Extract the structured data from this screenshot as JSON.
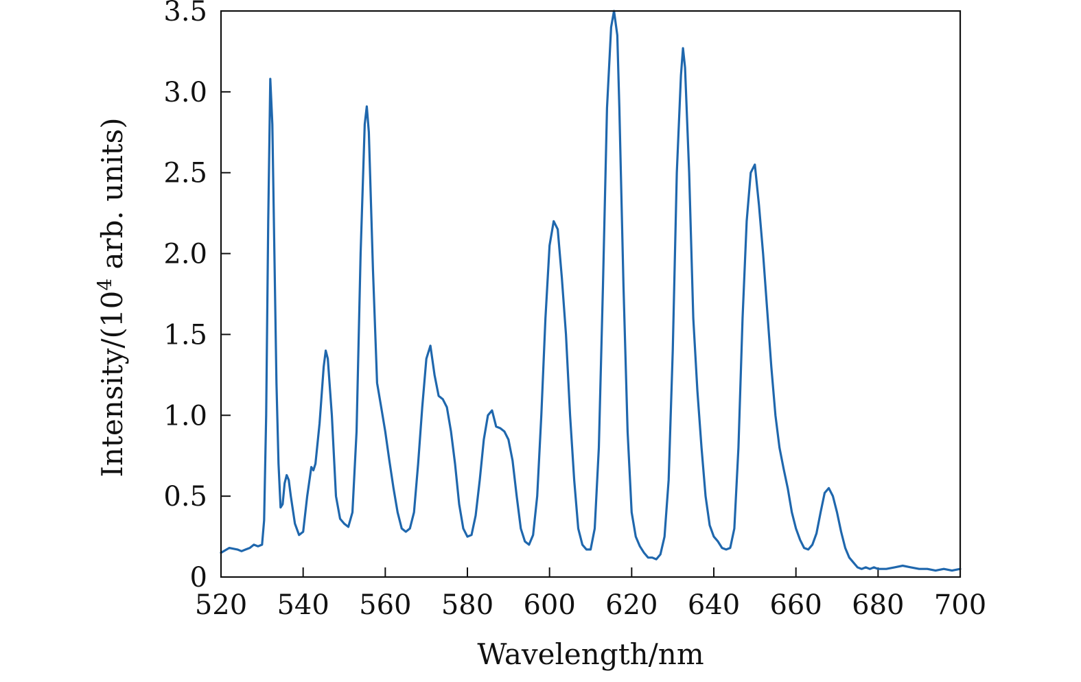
{
  "chart_data": {
    "type": "line",
    "title": "",
    "xlabel": "Wavelength/nm",
    "ylabel": "Intensity/(10⁴ arb. units)",
    "ylabel_parts": {
      "prefix": "Intensity/(10",
      "superscript": "4",
      "suffix": " arb. units)"
    },
    "xlim": [
      520,
      700
    ],
    "ylim": [
      0,
      3.5
    ],
    "x_ticks": [
      520,
      540,
      560,
      580,
      600,
      620,
      640,
      660,
      680,
      700
    ],
    "x_tick_labels": [
      "520",
      "540",
      "560",
      "580",
      "600",
      "620",
      "640",
      "660",
      "680",
      "700"
    ],
    "y_ticks": [
      0,
      0.5,
      1.0,
      1.5,
      2.0,
      2.5,
      3.0,
      3.5
    ],
    "y_tick_labels": [
      "0",
      "0.5",
      "1.0",
      "1.5",
      "2.0",
      "2.5",
      "3.0",
      "3.5"
    ],
    "grid": false,
    "legend": "none",
    "series": [
      {
        "color": "#1f67ad",
        "points": [
          [
            520,
            0.15
          ],
          [
            522,
            0.18
          ],
          [
            524,
            0.17
          ],
          [
            525,
            0.16
          ],
          [
            526,
            0.17
          ],
          [
            527,
            0.18
          ],
          [
            528,
            0.2
          ],
          [
            529,
            0.19
          ],
          [
            530,
            0.2
          ],
          [
            530.5,
            0.35
          ],
          [
            531,
            1.0
          ],
          [
            531.5,
            2.2
          ],
          [
            532,
            3.08
          ],
          [
            532.5,
            2.8
          ],
          [
            533,
            2.0
          ],
          [
            533.5,
            1.2
          ],
          [
            534,
            0.7
          ],
          [
            534.5,
            0.43
          ],
          [
            535,
            0.45
          ],
          [
            535.5,
            0.58
          ],
          [
            536,
            0.63
          ],
          [
            536.5,
            0.6
          ],
          [
            537,
            0.5
          ],
          [
            538,
            0.33
          ],
          [
            539,
            0.26
          ],
          [
            540,
            0.28
          ],
          [
            541,
            0.5
          ],
          [
            542,
            0.68
          ],
          [
            542.5,
            0.66
          ],
          [
            543,
            0.7
          ],
          [
            544,
            0.95
          ],
          [
            545,
            1.3
          ],
          [
            545.5,
            1.4
          ],
          [
            546,
            1.35
          ],
          [
            547,
            1.0
          ],
          [
            548,
            0.5
          ],
          [
            549,
            0.36
          ],
          [
            550,
            0.33
          ],
          [
            551,
            0.31
          ],
          [
            552,
            0.4
          ],
          [
            553,
            0.9
          ],
          [
            554,
            2.0
          ],
          [
            555,
            2.8
          ],
          [
            555.5,
            2.91
          ],
          [
            556,
            2.75
          ],
          [
            557,
            1.9
          ],
          [
            558,
            1.2
          ],
          [
            559,
            1.05
          ],
          [
            560,
            0.9
          ],
          [
            561,
            0.72
          ],
          [
            562,
            0.55
          ],
          [
            563,
            0.4
          ],
          [
            564,
            0.3
          ],
          [
            565,
            0.28
          ],
          [
            566,
            0.3
          ],
          [
            567,
            0.4
          ],
          [
            568,
            0.7
          ],
          [
            569,
            1.05
          ],
          [
            570,
            1.35
          ],
          [
            571,
            1.43
          ],
          [
            572,
            1.25
          ],
          [
            573,
            1.12
          ],
          [
            574,
            1.1
          ],
          [
            575,
            1.05
          ],
          [
            576,
            0.9
          ],
          [
            577,
            0.7
          ],
          [
            578,
            0.45
          ],
          [
            579,
            0.3
          ],
          [
            580,
            0.25
          ],
          [
            581,
            0.26
          ],
          [
            582,
            0.38
          ],
          [
            583,
            0.6
          ],
          [
            584,
            0.85
          ],
          [
            585,
            1.0
          ],
          [
            586,
            1.03
          ],
          [
            587,
            0.93
          ],
          [
            588,
            0.92
          ],
          [
            589,
            0.9
          ],
          [
            590,
            0.85
          ],
          [
            591,
            0.72
          ],
          [
            592,
            0.5
          ],
          [
            593,
            0.3
          ],
          [
            594,
            0.22
          ],
          [
            595,
            0.2
          ],
          [
            596,
            0.26
          ],
          [
            597,
            0.5
          ],
          [
            598,
            1.0
          ],
          [
            599,
            1.6
          ],
          [
            600,
            2.05
          ],
          [
            601,
            2.2
          ],
          [
            602,
            2.15
          ],
          [
            603,
            1.85
          ],
          [
            604,
            1.5
          ],
          [
            605,
            1.0
          ],
          [
            606,
            0.6
          ],
          [
            607,
            0.3
          ],
          [
            608,
            0.2
          ],
          [
            609,
            0.17
          ],
          [
            610,
            0.17
          ],
          [
            611,
            0.3
          ],
          [
            612,
            0.8
          ],
          [
            613,
            1.8
          ],
          [
            614,
            2.9
          ],
          [
            615,
            3.4
          ],
          [
            615.7,
            3.5
          ],
          [
            616.5,
            3.35
          ],
          [
            617,
            2.9
          ],
          [
            618,
            1.8
          ],
          [
            619,
            0.9
          ],
          [
            620,
            0.4
          ],
          [
            621,
            0.25
          ],
          [
            622,
            0.19
          ],
          [
            623,
            0.15
          ],
          [
            624,
            0.12
          ],
          [
            625,
            0.12
          ],
          [
            626,
            0.11
          ],
          [
            627,
            0.14
          ],
          [
            628,
            0.25
          ],
          [
            629,
            0.6
          ],
          [
            630,
            1.4
          ],
          [
            631,
            2.5
          ],
          [
            632,
            3.1
          ],
          [
            632.5,
            3.27
          ],
          [
            633,
            3.15
          ],
          [
            634,
            2.5
          ],
          [
            635,
            1.6
          ],
          [
            636,
            1.15
          ],
          [
            637,
            0.8
          ],
          [
            638,
            0.5
          ],
          [
            639,
            0.32
          ],
          [
            640,
            0.25
          ],
          [
            641,
            0.22
          ],
          [
            642,
            0.18
          ],
          [
            643,
            0.17
          ],
          [
            644,
            0.18
          ],
          [
            645,
            0.3
          ],
          [
            646,
            0.8
          ],
          [
            647,
            1.6
          ],
          [
            648,
            2.2
          ],
          [
            649,
            2.5
          ],
          [
            650,
            2.55
          ],
          [
            651,
            2.3
          ],
          [
            652,
            2.0
          ],
          [
            653,
            1.65
          ],
          [
            654,
            1.3
          ],
          [
            655,
            1.0
          ],
          [
            656,
            0.8
          ],
          [
            657,
            0.67
          ],
          [
            658,
            0.55
          ],
          [
            659,
            0.4
          ],
          [
            660,
            0.3
          ],
          [
            661,
            0.23
          ],
          [
            662,
            0.18
          ],
          [
            663,
            0.17
          ],
          [
            664,
            0.2
          ],
          [
            665,
            0.27
          ],
          [
            666,
            0.4
          ],
          [
            667,
            0.52
          ],
          [
            668,
            0.55
          ],
          [
            669,
            0.5
          ],
          [
            670,
            0.4
          ],
          [
            671,
            0.28
          ],
          [
            672,
            0.18
          ],
          [
            673,
            0.12
          ],
          [
            674,
            0.09
          ],
          [
            675,
            0.06
          ],
          [
            676,
            0.05
          ],
          [
            677,
            0.06
          ],
          [
            678,
            0.05
          ],
          [
            679,
            0.06
          ],
          [
            680,
            0.05
          ],
          [
            682,
            0.05
          ],
          [
            684,
            0.06
          ],
          [
            686,
            0.07
          ],
          [
            688,
            0.06
          ],
          [
            690,
            0.05
          ],
          [
            692,
            0.05
          ],
          [
            694,
            0.04
          ],
          [
            696,
            0.05
          ],
          [
            698,
            0.04
          ],
          [
            700,
            0.05
          ]
        ]
      }
    ]
  }
}
